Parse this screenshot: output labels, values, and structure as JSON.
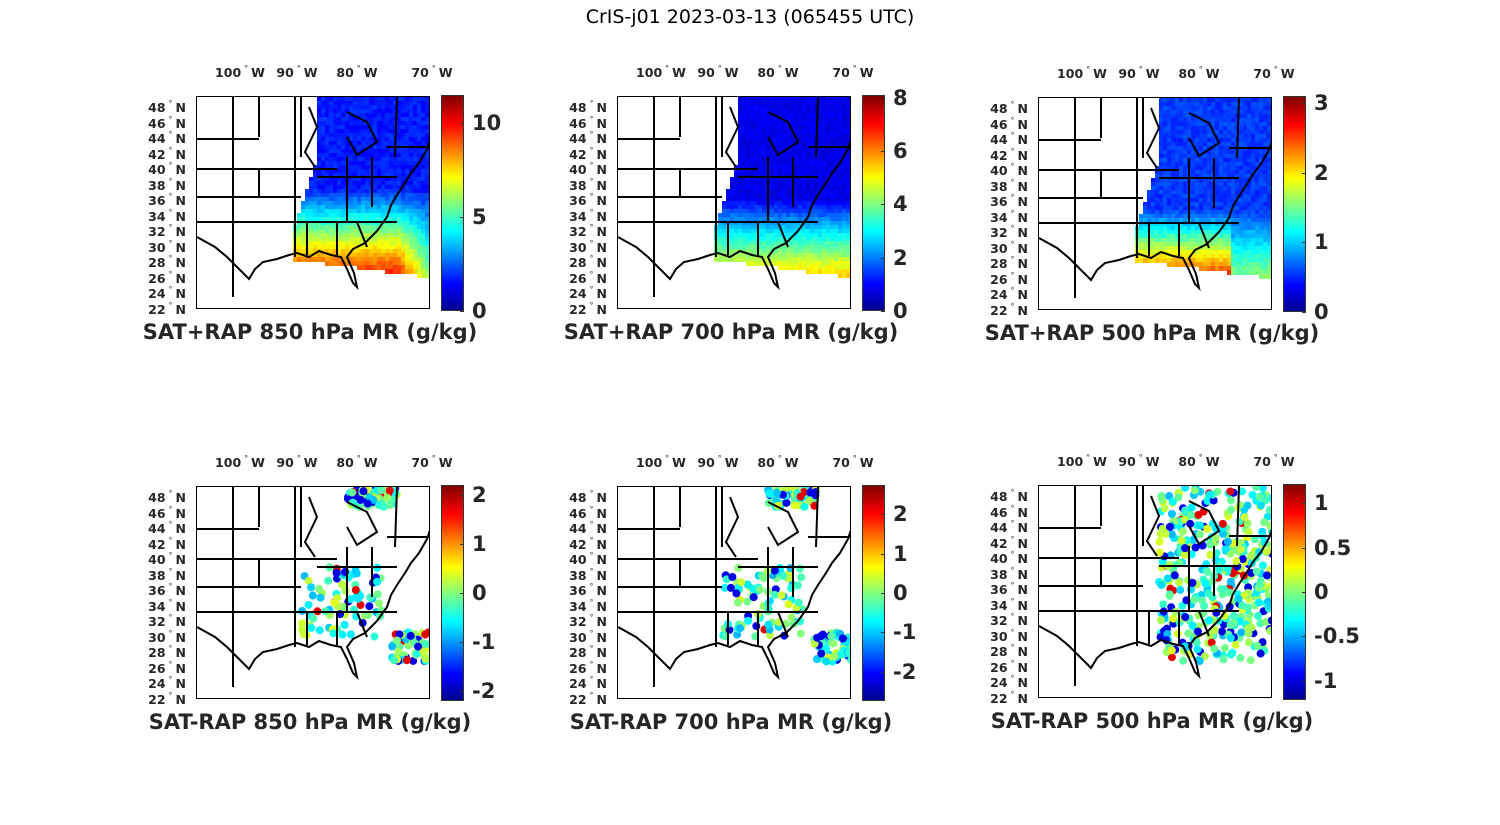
{
  "figure_title": "CrIS-j01 2023-03-13 (065455 UTC)",
  "lon_ticks": [
    "100",
    "90",
    "80",
    "70"
  ],
  "lon_suffix": "W",
  "lat_ticks": [
    "48",
    "46",
    "44",
    "42",
    "40",
    "38",
    "36",
    "34",
    "32",
    "30",
    "28",
    "26",
    "24",
    "22"
  ],
  "lat_suffix": "N",
  "degree_symbol": "°",
  "panels": [
    {
      "title": "SAT+RAP 850 hPa MR (g/kg)",
      "kind": "total",
      "range": [
        0,
        11.5
      ],
      "ticks": [
        0,
        5,
        10
      ],
      "tick_labels": [
        "0",
        "5",
        "10"
      ]
    },
    {
      "title": "SAT+RAP 700 hPa MR (g/kg)",
      "kind": "total",
      "range": [
        0,
        8.1
      ],
      "ticks": [
        0,
        2,
        4,
        6,
        8
      ],
      "tick_labels": [
        "0",
        "2",
        "4",
        "6",
        "8"
      ]
    },
    {
      "title": "SAT+RAP 500 hPa MR (g/kg)",
      "kind": "total",
      "range": [
        0,
        3.1
      ],
      "ticks": [
        0,
        1,
        2,
        3
      ],
      "tick_labels": [
        "0",
        "1",
        "2",
        "3"
      ]
    },
    {
      "title": "SAT-RAP 850 hPa MR (g/kg)",
      "kind": "diff",
      "range": [
        -2.2,
        2.2
      ],
      "ticks": [
        -2,
        -1,
        0,
        1,
        2
      ],
      "tick_labels": [
        "-2",
        "-1",
        "0",
        "1",
        "2"
      ]
    },
    {
      "title": "SAT-RAP 700 hPa MR (g/kg)",
      "kind": "diff",
      "range": [
        -2.75,
        2.75
      ],
      "ticks": [
        -2,
        -1,
        0,
        1,
        2
      ],
      "tick_labels": [
        "-2",
        "-1",
        "0",
        "1",
        "2"
      ]
    },
    {
      "title": "SAT-RAP 500 hPa MR (g/kg)",
      "kind": "diff",
      "range": [
        -1.22,
        1.22
      ],
      "ticks": [
        -1,
        -0.5,
        0,
        0.5,
        1
      ],
      "tick_labels": [
        "-1",
        "-0.5",
        "0",
        "0.5",
        "1"
      ]
    }
  ]
}
